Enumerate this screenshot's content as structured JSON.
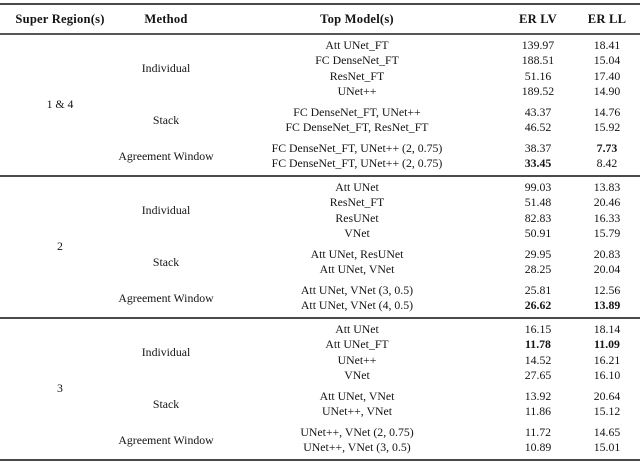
{
  "table": {
    "headers": {
      "region": "Super Region(s)",
      "method": "Method",
      "models": "Top Model(s)",
      "er_lv": "ER LV",
      "er_ll": "ER LL"
    },
    "blocks": [
      {
        "region": "1 & 4",
        "methods": {
          "individual": "Individual",
          "stack": "Stack",
          "agreement": "Agreement Window"
        },
        "rows": [
          {
            "models": "Att UNet_FT",
            "er_lv": "139.97",
            "er_ll": "18.41"
          },
          {
            "models": "FC DenseNet_FT",
            "er_lv": "188.51",
            "er_ll": "15.04"
          },
          {
            "models": "ResNet_FT",
            "er_lv": "51.16",
            "er_ll": "17.40"
          },
          {
            "models": "UNet++",
            "er_lv": "189.52",
            "er_ll": "14.90"
          },
          {
            "models": "FC DenseNet_FT, UNet++",
            "er_lv": "43.37",
            "er_ll": "14.76"
          },
          {
            "models": "FC DenseNet_FT, ResNet_FT",
            "er_lv": "46.52",
            "er_ll": "15.92"
          },
          {
            "models": "FC DenseNet_FT, UNet++ (2, 0.75)",
            "er_lv": "38.37",
            "er_ll": "7.73"
          },
          {
            "models": "FC DenseNet_FT, UNet++ (2, 0.75)",
            "er_lv": "33.45",
            "er_ll": "8.42"
          }
        ]
      },
      {
        "region": "2",
        "methods": {
          "individual": "Individual",
          "stack": "Stack",
          "agreement": "Agreement Window"
        },
        "rows": [
          {
            "models": "Att UNet",
            "er_lv": "99.03",
            "er_ll": "13.83"
          },
          {
            "models": "ResNet_FT",
            "er_lv": "51.48",
            "er_ll": "20.46"
          },
          {
            "models": "ResUNet",
            "er_lv": "82.83",
            "er_ll": "16.33"
          },
          {
            "models": "VNet",
            "er_lv": "50.91",
            "er_ll": "15.79"
          },
          {
            "models": "Att UNet, ResUNet",
            "er_lv": "29.95",
            "er_ll": "20.83"
          },
          {
            "models": "Att UNet, VNet",
            "er_lv": "28.25",
            "er_ll": "20.04"
          },
          {
            "models": "Att UNet, VNet (3, 0.5)",
            "er_lv": "25.81",
            "er_ll": "12.56"
          },
          {
            "models": "Att UNet, VNet (4, 0.5)",
            "er_lv": "26.62",
            "er_ll": "13.89"
          }
        ]
      },
      {
        "region": "3",
        "methods": {
          "individual": "Individual",
          "stack": "Stack",
          "agreement": "Agreement Window"
        },
        "rows": [
          {
            "models": "Att UNet",
            "er_lv": "16.15",
            "er_ll": "18.14"
          },
          {
            "models": "Att UNet_FT",
            "er_lv": "11.78",
            "er_ll": "11.09"
          },
          {
            "models": "UNet++",
            "er_lv": "14.52",
            "er_ll": "16.21"
          },
          {
            "models": "VNet",
            "er_lv": "27.65",
            "er_ll": "16.10"
          },
          {
            "models": "Att UNet, VNet",
            "er_lv": "13.92",
            "er_ll": "20.64"
          },
          {
            "models": "UNet++, VNet",
            "er_lv": "11.86",
            "er_ll": "15.12"
          },
          {
            "models": "UNet++, VNet (2, 0.75)",
            "er_lv": "11.72",
            "er_ll": "14.65"
          },
          {
            "models": "UNet++, VNet (3, 0.5)",
            "er_lv": "10.89",
            "er_ll": "15.01"
          }
        ]
      }
    ]
  }
}
